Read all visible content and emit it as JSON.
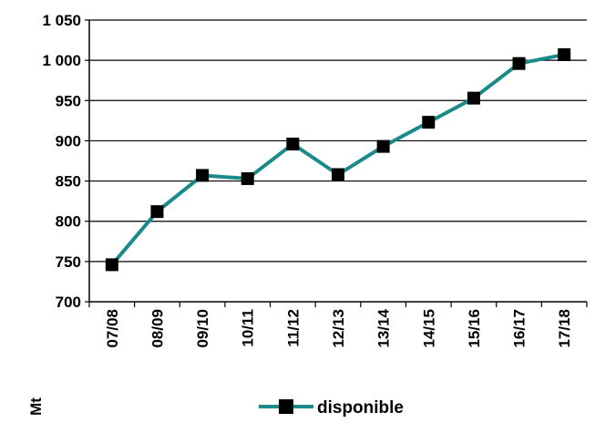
{
  "chart_data": {
    "type": "line",
    "title": "",
    "xlabel": "",
    "ylabel": "Mt",
    "categories": [
      "07/08",
      "08/09",
      "09/10",
      "10/11",
      "11/12",
      "12/13",
      "13/14",
      "14/15",
      "15/16",
      "16/17",
      "17/18"
    ],
    "series": [
      {
        "name": "disponible",
        "color": "#1a8a8a",
        "marker_color": "#000000",
        "values": [
          746,
          812,
          857,
          853,
          896,
          858,
          893,
          923,
          953,
          996,
          1007
        ]
      }
    ],
    "ylim": [
      700,
      1050
    ],
    "yticks": [
      700,
      750,
      800,
      850,
      900,
      950,
      1000,
      1050
    ],
    "ytick_labels": [
      "700",
      "750",
      "800",
      "850",
      "900",
      "950",
      "1 000",
      "1 050"
    ],
    "grid": "horizontal",
    "legend_position": "bottom"
  }
}
